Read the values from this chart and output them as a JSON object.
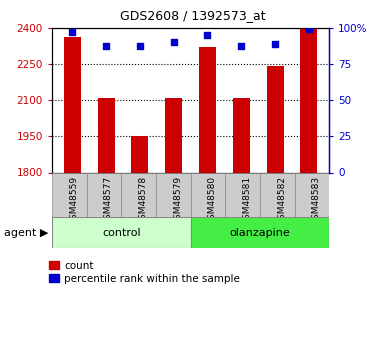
{
  "title": "GDS2608 / 1392573_at",
  "samples": [
    "GSM48559",
    "GSM48577",
    "GSM48578",
    "GSM48579",
    "GSM48580",
    "GSM48581",
    "GSM48582",
    "GSM48583"
  ],
  "counts": [
    2360,
    2107,
    1950,
    2110,
    2320,
    2108,
    2240,
    2395
  ],
  "percentile_ranks": [
    97,
    87,
    87,
    90,
    95,
    87,
    89,
    99
  ],
  "ylim": [
    1800,
    2400
  ],
  "yticks": [
    1800,
    1950,
    2100,
    2250,
    2400
  ],
  "ytick_labels": [
    "1800",
    "1950",
    "2100",
    "2250",
    "2400"
  ],
  "right_yticks": [
    0,
    25,
    50,
    75,
    100
  ],
  "right_ytick_labels": [
    "0",
    "25",
    "50",
    "75",
    "100%"
  ],
  "bar_color": "#cc0000",
  "dot_color": "#0000cc",
  "left_tick_color": "#cc0000",
  "right_tick_color": "#0000cc",
  "groups": [
    {
      "label": "control",
      "start": 0,
      "end": 4,
      "color": "#ccffcc",
      "edgecolor": "#888888"
    },
    {
      "label": "olanzapine",
      "start": 4,
      "end": 8,
      "color": "#44ee44",
      "edgecolor": "#888888"
    }
  ],
  "group_row_label": "agent",
  "bar_width": 0.5,
  "sample_box_color": "#cccccc",
  "sample_box_edge": "#888888"
}
